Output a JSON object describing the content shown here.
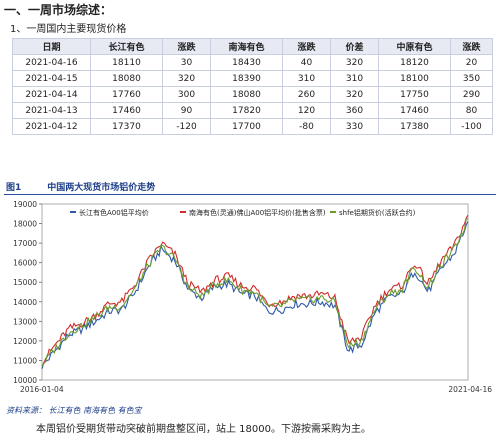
{
  "heading": "一、一周市场综述：",
  "subheading": "1、一周国内主要现货价格",
  "table": {
    "headers": [
      "日期",
      "长江有色",
      "涨跌",
      "南海有色",
      "涨跌",
      "价差",
      "中原有色",
      "涨跌"
    ],
    "rows": [
      [
        "2021-04-16",
        "18110",
        "30",
        "18430",
        "40",
        "320",
        "18120",
        "20"
      ],
      [
        "2021-04-15",
        "18080",
        "320",
        "18390",
        "310",
        "310",
        "18100",
        "350"
      ],
      [
        "2021-04-14",
        "17760",
        "300",
        "18080",
        "260",
        "320",
        "17750",
        "290"
      ],
      [
        "2021-04-13",
        "17460",
        "90",
        "17820",
        "120",
        "360",
        "17460",
        "80"
      ],
      [
        "2021-04-12",
        "17370",
        "-120",
        "17700",
        "-80",
        "330",
        "17380",
        "-100"
      ]
    ]
  },
  "figure": {
    "number": "图1",
    "title": "中国两大现货市场铝价走势",
    "source": "资料来源：  长江有色   南海有色   有色宝"
  },
  "summary": "本周铝价受期货带动突破前期盘整区间，站上 18000。下游按需采购为主。",
  "chart_data": {
    "type": "line",
    "x_start": "2016-01-04",
    "x_end": "2021-04-16",
    "ylim": [
      10000,
      19000
    ],
    "yticks": [
      "10000",
      "11000",
      "12000",
      "13000",
      "14000",
      "15000",
      "16000",
      "17000",
      "18000",
      "19000"
    ],
    "xticks": [
      "2016-01-04",
      "2021-04-16"
    ],
    "x": [
      "2016-01",
      "2016-04",
      "2016-07",
      "2016-10",
      "2017-01",
      "2017-03",
      "2017-05",
      "2017-07",
      "2017-08",
      "2017-09",
      "2017-10",
      "2017-12",
      "2018-02",
      "2018-04",
      "2018-05",
      "2018-07",
      "2018-10",
      "2019-01",
      "2019-04",
      "2019-07",
      "2019-10",
      "2019-12",
      "2020-02",
      "2020-03",
      "2020-04",
      "2020-06",
      "2020-08",
      "2020-10",
      "2020-12",
      "2021-01",
      "2021-02",
      "2021-03",
      "2021-04"
    ],
    "series": [
      {
        "name": "长江有色A00铝平均价",
        "color": "#2f5aa8",
        "values": [
          10700,
          11500,
          12300,
          12600,
          13000,
          13500,
          13600,
          14500,
          15800,
          16700,
          16100,
          14600,
          14200,
          14800,
          14900,
          14400,
          14300,
          13500,
          13600,
          13900,
          13900,
          14000,
          13800,
          11500,
          11800,
          13400,
          14200,
          14400,
          15600,
          14500,
          15700,
          16500,
          18110
        ]
      },
      {
        "name": "南海有色(灵通)佛山A00铝平均价(批售含票)",
        "color": "#d22b2b",
        "values": [
          10900,
          11800,
          12600,
          12900,
          13300,
          13900,
          14000,
          14900,
          16100,
          17000,
          16400,
          14900,
          14500,
          15100,
          15300,
          14800,
          14700,
          13900,
          14000,
          14300,
          14300,
          14400,
          14200,
          11900,
          12200,
          13800,
          14600,
          14800,
          16000,
          14900,
          16100,
          16900,
          18430
        ]
      },
      {
        "name": "shfe铝期货价(活跃合约)",
        "color": "#6b9a2e",
        "values": [
          10800,
          11600,
          12400,
          12800,
          13200,
          13700,
          13800,
          14700,
          15900,
          16800,
          16200,
          14700,
          14300,
          14900,
          15100,
          14600,
          14500,
          13700,
          13800,
          14100,
          14100,
          14200,
          14000,
          11700,
          12000,
          13600,
          14400,
          14600,
          15800,
          14700,
          15900,
          16700,
          18250
        ]
      }
    ]
  }
}
